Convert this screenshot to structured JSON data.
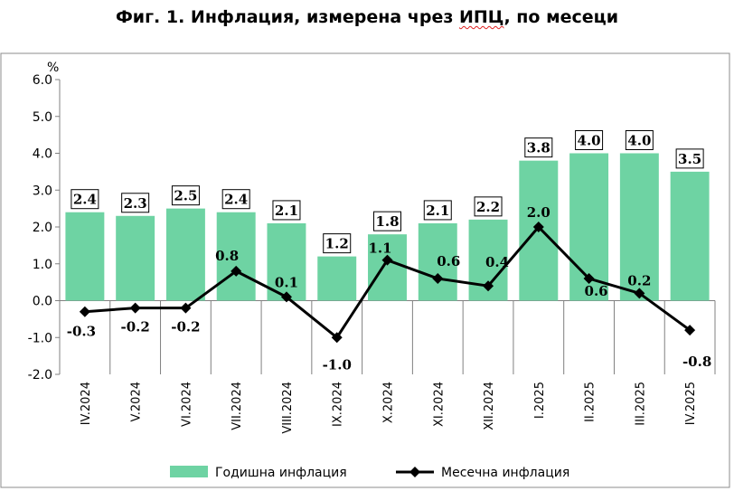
{
  "title": {
    "pre": "Фиг. 1. Инфлация, измерена чрез ",
    "spell": "ИПЦ",
    "post": ", по месеци"
  },
  "chart_data": {
    "type": "bar+line",
    "title": "Фиг. 1. Инфлация, измерена чрез ИПЦ, по месеци",
    "ylabel": "%",
    "ylim": [
      -2.0,
      6.0
    ],
    "yticks": [
      -2.0,
      -1.0,
      0.0,
      1.0,
      2.0,
      3.0,
      4.0,
      5.0,
      6.0
    ],
    "grid": false,
    "legend": "bottom",
    "categories": [
      "IV.2024",
      "V.2024",
      "VI.2024",
      "VII.2024",
      "VIII.2024",
      "IX.2024",
      "X.2024",
      "XI.2024",
      "XII.2024",
      "I.2025",
      "II.2025",
      "III.2025",
      "IV.2025"
    ],
    "series": [
      {
        "name": "Годишна инфлация",
        "type": "bar",
        "color": "#6ed3a3",
        "values": [
          2.4,
          2.3,
          2.5,
          2.4,
          2.1,
          1.2,
          1.8,
          2.1,
          2.2,
          3.8,
          4.0,
          4.0,
          3.5
        ],
        "labels": [
          "2.4",
          "2.3",
          "2.5",
          "2.4",
          "2.1",
          "1.2",
          "1.8",
          "2.1",
          "2.2",
          "3.8",
          "4.0",
          "4.0",
          "3.5"
        ]
      },
      {
        "name": "Месечна инфлация",
        "type": "line",
        "color": "#000000",
        "values": [
          -0.3,
          -0.2,
          -0.2,
          0.8,
          0.1,
          -1.0,
          1.1,
          0.6,
          0.4,
          2.0,
          0.6,
          0.2,
          -0.8
        ],
        "labels": [
          "-0.3",
          "-0.2",
          "-0.2",
          "0.8",
          "0.1",
          "-1.0",
          "1.1",
          "0.6",
          "0.4",
          "2.0",
          "0.6",
          "0.2",
          "-0.8"
        ]
      }
    ]
  }
}
